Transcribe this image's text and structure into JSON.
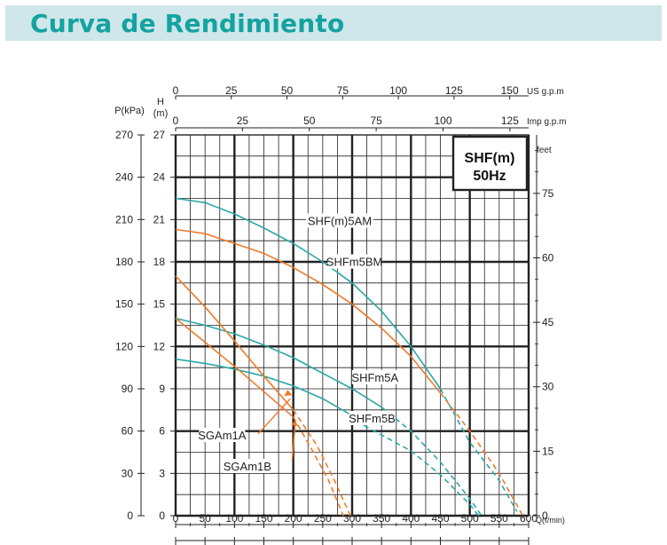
{
  "page": {
    "title": "Curva de Rendimiento"
  },
  "chart_data": {
    "type": "line",
    "model_box": {
      "line1": "SHF(m)",
      "line2": "50Hz"
    },
    "axes": {
      "x": {
        "label": "Q(ℓ/min)",
        "range": [
          0,
          600
        ],
        "ticks": [
          0,
          50,
          100,
          150,
          200,
          250,
          300,
          350,
          400,
          450,
          500,
          550,
          600
        ]
      },
      "us": {
        "label": "US  g.p.m",
        "range": [
          0,
          158.5
        ],
        "ticks": [
          0,
          25,
          50,
          75,
          100,
          125,
          150
        ]
      },
      "imp": {
        "label": "Imp  g.p.m",
        "range": [
          0,
          132
        ],
        "ticks": [
          0,
          25,
          50,
          75,
          100,
          125
        ]
      },
      "h": {
        "label_top": "H",
        "label_unit": "(m)",
        "range": [
          0,
          27
        ],
        "ticks": [
          0,
          3,
          6,
          9,
          12,
          15,
          18,
          21,
          24,
          27
        ]
      },
      "p": {
        "label": "P(kPa)",
        "range": [
          0,
          270
        ],
        "ticks": [
          0,
          30,
          60,
          90,
          120,
          150,
          180,
          210,
          240,
          270
        ]
      },
      "feet": {
        "label": "feet",
        "range": [
          0,
          88.6
        ],
        "ticks": [
          0,
          15,
          30,
          45,
          60,
          75
        ]
      }
    },
    "grid": true,
    "series": [
      {
        "name": "SHF(m)5AM",
        "color": "#2aa8a4",
        "label_at": [
          300,
          20.8
        ],
        "solid": [
          [
            0,
            22.5
          ],
          [
            50,
            22.2
          ],
          [
            100,
            21.4
          ],
          [
            150,
            20.4
          ],
          [
            200,
            19.3
          ],
          [
            250,
            18.0
          ],
          [
            300,
            16.5
          ],
          [
            350,
            14.5
          ],
          [
            400,
            12.0
          ],
          [
            450,
            9.0
          ]
        ],
        "dashed": [
          [
            450,
            9.0
          ],
          [
            500,
            5.2
          ],
          [
            550,
            2.5
          ],
          [
            580,
            0.3
          ]
        ]
      },
      {
        "name": "SHFm5BM",
        "color": "#f07a28",
        "label_at": [
          325,
          17.9
        ],
        "solid": [
          [
            0,
            20.3
          ],
          [
            50,
            20.0
          ],
          [
            100,
            19.3
          ],
          [
            150,
            18.6
          ],
          [
            200,
            17.6
          ],
          [
            250,
            16.4
          ],
          [
            300,
            15.0
          ],
          [
            350,
            13.3
          ],
          [
            400,
            11.3
          ],
          [
            450,
            8.7
          ]
        ],
        "dashed": [
          [
            450,
            8.7
          ],
          [
            500,
            6.0
          ],
          [
            550,
            3.0
          ],
          [
            590,
            0
          ]
        ]
      },
      {
        "name": "SHFm5A",
        "color": "#2aa8a4",
        "label_at": [
          360,
          9.7
        ],
        "solid": [
          [
            0,
            14.0
          ],
          [
            50,
            13.5
          ],
          [
            100,
            12.9
          ],
          [
            150,
            12.1
          ],
          [
            200,
            11.2
          ],
          [
            250,
            10.1
          ],
          [
            300,
            9.0
          ],
          [
            350,
            7.7
          ]
        ],
        "dashed": [
          [
            350,
            7.7
          ],
          [
            400,
            6.0
          ],
          [
            450,
            3.8
          ],
          [
            500,
            1.2
          ],
          [
            520,
            0
          ]
        ]
      },
      {
        "name": "SHFm5B",
        "color": "#2aa8a4",
        "label_at": [
          355,
          6.8
        ],
        "solid": [
          [
            0,
            11.1
          ],
          [
            50,
            10.8
          ],
          [
            100,
            10.4
          ],
          [
            150,
            9.9
          ],
          [
            200,
            9.2
          ],
          [
            250,
            8.3
          ],
          [
            300,
            7.1
          ],
          [
            320,
            6.4
          ]
        ],
        "dashed": [
          [
            320,
            6.4
          ],
          [
            400,
            4.6
          ],
          [
            450,
            2.9
          ],
          [
            500,
            0.8
          ],
          [
            515,
            0
          ]
        ]
      },
      {
        "name": "SGAm1A",
        "color": "#f07a28",
        "label_at": [
          100,
          5.6
        ],
        "solid": [
          [
            0,
            17.0
          ],
          [
            50,
            14.8
          ],
          [
            100,
            12.4
          ],
          [
            150,
            9.9
          ],
          [
            200,
            7.5
          ]
        ],
        "dashed": [
          [
            200,
            7.5
          ],
          [
            240,
            5.0
          ],
          [
            270,
            2.5
          ],
          [
            297,
            0
          ]
        ]
      },
      {
        "name": "SGAm1B",
        "color": "#f07a28",
        "label_at": [
          143,
          3.4
        ],
        "solid": [
          [
            0,
            14.0
          ],
          [
            50,
            12.3
          ],
          [
            100,
            10.6
          ],
          [
            150,
            8.8
          ],
          [
            200,
            7.0
          ]
        ],
        "dashed": [
          [
            200,
            7.0
          ],
          [
            230,
            4.8
          ],
          [
            260,
            2.5
          ],
          [
            285,
            0
          ]
        ]
      }
    ]
  }
}
